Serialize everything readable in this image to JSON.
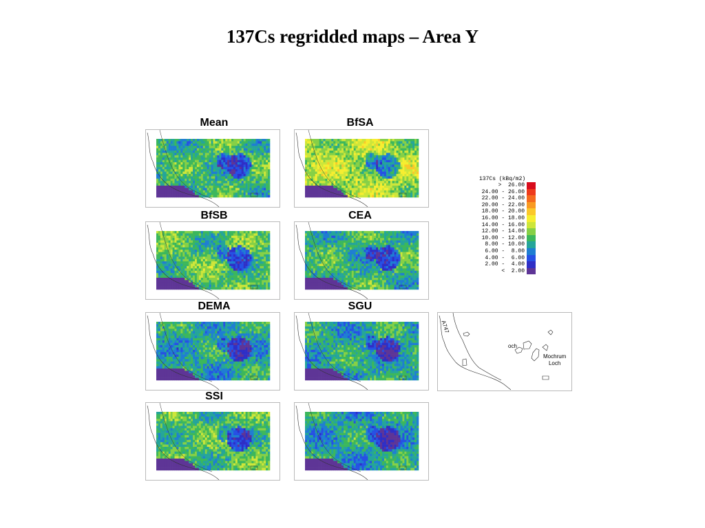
{
  "title": "137Cs regridded maps – Area Y",
  "maps": [
    {
      "label": "Mean",
      "seed": 11,
      "offset": 0.0
    },
    {
      "label": "BfSA",
      "seed": 23,
      "offset": 3.5
    },
    {
      "label": "BfSB",
      "seed": 37,
      "offset": 0.8
    },
    {
      "label": "CEA",
      "seed": 41,
      "offset": -0.5
    },
    {
      "label": "DEMA",
      "seed": 53,
      "offset": -1.4
    },
    {
      "label": "SGU",
      "seed": 67,
      "offset": -1.2
    },
    {
      "label": "SSI",
      "seed": 71,
      "offset": 0.6
    },
    {
      "label": "",
      "seed": 83,
      "offset": -1.6
    }
  ],
  "legend": {
    "title": "137Cs (kBq/m2)",
    "items": [
      {
        "label": ">  26.00",
        "color": "#d80c1c"
      },
      {
        "label": "24.00 - 26.00",
        "color": "#ee3a1c"
      },
      {
        "label": "22.00 - 24.00",
        "color": "#f56a1e"
      },
      {
        "label": "20.00 - 22.00",
        "color": "#f99a22"
      },
      {
        "label": "18.00 - 20.00",
        "color": "#fbc82a"
      },
      {
        "label": "16.00 - 18.00",
        "color": "#f6ee30"
      },
      {
        "label": "14.00 - 16.00",
        "color": "#cde63a"
      },
      {
        "label": "12.00 - 14.00",
        "color": "#86d046"
      },
      {
        "label": "10.00 - 12.00",
        "color": "#3cb75c"
      },
      {
        "label": "8.00 - 10.00",
        "color": "#25a59a"
      },
      {
        "label": "6.00 -  8.00",
        "color": "#1f7ed2"
      },
      {
        "label": "4.00 -  6.00",
        "color": "#2650e4"
      },
      {
        "label": "2.00 -  4.00",
        "color": "#2f2fc6"
      },
      {
        "label": "<  2.00",
        "color": "#5e3596"
      }
    ]
  },
  "reference_map": {
    "road_label": "A747",
    "place_label": "och",
    "loch_label": "Mochrum\nLoch"
  }
}
